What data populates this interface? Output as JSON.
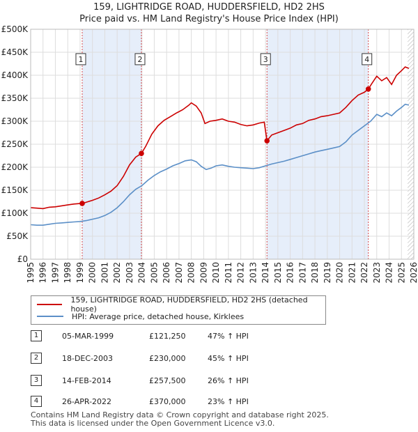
{
  "chart_data": {
    "type": "line",
    "title": "159, LIGHTRIDGE ROAD, HUDDERSFIELD, HD2 2HS",
    "subtitle": "Price paid vs. HM Land Registry's House Price Index (HPI)",
    "xlim": [
      1995,
      2026
    ],
    "ylim": [
      0,
      500000
    ],
    "x_ticks": [
      "1995",
      "1996",
      "1997",
      "1998",
      "1999",
      "2000",
      "2001",
      "2002",
      "2003",
      "2004",
      "2005",
      "2006",
      "2007",
      "2008",
      "2009",
      "2010",
      "2011",
      "2012",
      "2013",
      "2014",
      "2015",
      "2016",
      "2017",
      "2018",
      "2019",
      "2020",
      "2021",
      "2022",
      "2023",
      "2024",
      "2025",
      "2026"
    ],
    "y_ticks": [
      {
        "value": 0,
        "label": "£0"
      },
      {
        "value": 50000,
        "label": "£50K"
      },
      {
        "value": 100000,
        "label": "£100K"
      },
      {
        "value": 150000,
        "label": "£150K"
      },
      {
        "value": 200000,
        "label": "£200K"
      },
      {
        "value": 250000,
        "label": "£250K"
      },
      {
        "value": 300000,
        "label": "£300K"
      },
      {
        "value": 350000,
        "label": "£350K"
      },
      {
        "value": 400000,
        "label": "£400K"
      },
      {
        "value": 450000,
        "label": "£450K"
      },
      {
        "value": 500000,
        "label": "£500K"
      }
    ],
    "series": [
      {
        "name": "159, LIGHTRIDGE ROAD, HUDDERSFIELD, HD2 2HS (detached house)",
        "color": "#cc0000",
        "points": [
          [
            1995,
            112000
          ],
          [
            1995.5,
            111000
          ],
          [
            1996,
            110000
          ],
          [
            1996.5,
            113000
          ],
          [
            1997,
            114000
          ],
          [
            1997.5,
            116000
          ],
          [
            1998,
            118000
          ],
          [
            1998.5,
            120000
          ],
          [
            1999,
            121000
          ],
          [
            1999.2,
            121250
          ],
          [
            1999.5,
            124000
          ],
          [
            2000,
            128000
          ],
          [
            2000.5,
            133000
          ],
          [
            2001,
            140000
          ],
          [
            2001.5,
            148000
          ],
          [
            2002,
            160000
          ],
          [
            2002.5,
            180000
          ],
          [
            2003,
            205000
          ],
          [
            2003.5,
            222000
          ],
          [
            2003.96,
            230000
          ],
          [
            2004.3,
            245000
          ],
          [
            2004.8,
            272000
          ],
          [
            2005.3,
            290000
          ],
          [
            2005.8,
            302000
          ],
          [
            2006.3,
            310000
          ],
          [
            2006.8,
            318000
          ],
          [
            2007.3,
            325000
          ],
          [
            2007.8,
            335000
          ],
          [
            2008.0,
            340000
          ],
          [
            2008.4,
            333000
          ],
          [
            2008.8,
            318000
          ],
          [
            2009.1,
            295000
          ],
          [
            2009.5,
            300000
          ],
          [
            2010,
            302000
          ],
          [
            2010.5,
            305000
          ],
          [
            2011,
            300000
          ],
          [
            2011.5,
            298000
          ],
          [
            2012,
            293000
          ],
          [
            2012.5,
            290000
          ],
          [
            2013,
            292000
          ],
          [
            2013.5,
            296000
          ],
          [
            2013.9,
            298000
          ],
          [
            2014.12,
            257500
          ],
          [
            2014.5,
            270000
          ],
          [
            2015,
            275000
          ],
          [
            2015.5,
            280000
          ],
          [
            2016,
            285000
          ],
          [
            2016.5,
            292000
          ],
          [
            2017,
            295000
          ],
          [
            2017.5,
            302000
          ],
          [
            2018,
            305000
          ],
          [
            2018.5,
            310000
          ],
          [
            2019,
            312000
          ],
          [
            2019.5,
            315000
          ],
          [
            2020,
            318000
          ],
          [
            2020.5,
            330000
          ],
          [
            2021,
            345000
          ],
          [
            2021.5,
            357000
          ],
          [
            2022,
            363000
          ],
          [
            2022.32,
            370000
          ],
          [
            2022.6,
            382000
          ],
          [
            2023,
            398000
          ],
          [
            2023.4,
            388000
          ],
          [
            2023.8,
            395000
          ],
          [
            2024.2,
            380000
          ],
          [
            2024.6,
            400000
          ],
          [
            2025,
            410000
          ],
          [
            2025.3,
            418000
          ],
          [
            2025.6,
            415000
          ]
        ]
      },
      {
        "name": "HPI: Average price, detached house, Kirklees",
        "color": "#5b8fc7",
        "points": [
          [
            1995,
            75000
          ],
          [
            1995.5,
            74000
          ],
          [
            1996,
            74000
          ],
          [
            1996.5,
            76000
          ],
          [
            1997,
            78000
          ],
          [
            1997.5,
            79000
          ],
          [
            1998,
            80000
          ],
          [
            1998.5,
            81000
          ],
          [
            1999,
            82000
          ],
          [
            1999.5,
            84000
          ],
          [
            2000,
            87000
          ],
          [
            2000.5,
            90000
          ],
          [
            2001,
            95000
          ],
          [
            2001.5,
            102000
          ],
          [
            2002,
            112000
          ],
          [
            2002.5,
            125000
          ],
          [
            2003,
            140000
          ],
          [
            2003.5,
            152000
          ],
          [
            2004,
            160000
          ],
          [
            2004.5,
            172000
          ],
          [
            2005,
            182000
          ],
          [
            2005.5,
            190000
          ],
          [
            2006,
            196000
          ],
          [
            2006.5,
            203000
          ],
          [
            2007,
            208000
          ],
          [
            2007.5,
            214000
          ],
          [
            2008,
            216000
          ],
          [
            2008.4,
            212000
          ],
          [
            2008.8,
            202000
          ],
          [
            2009.2,
            195000
          ],
          [
            2009.6,
            198000
          ],
          [
            2010,
            203000
          ],
          [
            2010.5,
            205000
          ],
          [
            2011,
            202000
          ],
          [
            2011.5,
            200000
          ],
          [
            2012,
            199000
          ],
          [
            2012.5,
            198000
          ],
          [
            2013,
            197000
          ],
          [
            2013.5,
            199000
          ],
          [
            2014,
            203000
          ],
          [
            2014.5,
            207000
          ],
          [
            2015,
            210000
          ],
          [
            2015.5,
            213000
          ],
          [
            2016,
            217000
          ],
          [
            2016.5,
            221000
          ],
          [
            2017,
            225000
          ],
          [
            2017.5,
            229000
          ],
          [
            2018,
            233000
          ],
          [
            2018.5,
            236000
          ],
          [
            2019,
            239000
          ],
          [
            2019.5,
            242000
          ],
          [
            2020,
            245000
          ],
          [
            2020.5,
            255000
          ],
          [
            2021,
            270000
          ],
          [
            2021.5,
            280000
          ],
          [
            2022,
            290000
          ],
          [
            2022.5,
            300000
          ],
          [
            2023,
            315000
          ],
          [
            2023.4,
            310000
          ],
          [
            2023.8,
            318000
          ],
          [
            2024.2,
            312000
          ],
          [
            2024.6,
            322000
          ],
          [
            2025,
            330000
          ],
          [
            2025.3,
            337000
          ],
          [
            2025.6,
            335000
          ]
        ]
      }
    ],
    "sales": [
      {
        "label": "1",
        "x": 1999.17,
        "y": 121250,
        "label_y": 435000
      },
      {
        "label": "2",
        "x": 2003.96,
        "y": 230000,
        "label_y": 435000
      },
      {
        "label": "3",
        "x": 2014.12,
        "y": 257500,
        "label_y": 435000
      },
      {
        "label": "4",
        "x": 2022.32,
        "y": 370000,
        "label_y": 435000
      }
    ],
    "shaded_ranges": [
      [
        1999.17,
        2003.96
      ],
      [
        2014.12,
        2022.32
      ]
    ],
    "hatch_from": 2025.5,
    "xlabel": "",
    "ylabel": ""
  },
  "legend": {
    "red_label": "159, LIGHTRIDGE ROAD, HUDDERSFIELD, HD2 2HS (detached house)",
    "blue_label": "HPI: Average price, detached house, Kirklees"
  },
  "sales_table": [
    {
      "num": "1",
      "date": "05-MAR-1999",
      "price": "£121,250",
      "hpi": "47% ↑ HPI"
    },
    {
      "num": "2",
      "date": "18-DEC-2003",
      "price": "£230,000",
      "hpi": "45% ↑ HPI"
    },
    {
      "num": "3",
      "date": "14-FEB-2014",
      "price": "£257,500",
      "hpi": "26% ↑ HPI"
    },
    {
      "num": "4",
      "date": "26-APR-2022",
      "price": "£370,000",
      "hpi": "23% ↑ HPI"
    }
  ],
  "footer": {
    "line1": "Contains HM Land Registry data © Crown copyright and database right 2025.",
    "line2": "This data is licensed under the Open Government Licence v3.0."
  },
  "colors": {
    "red": "#cc0000",
    "blue": "#5b8fc7",
    "shade": "#e6eefa",
    "grid": "#dddddd"
  }
}
